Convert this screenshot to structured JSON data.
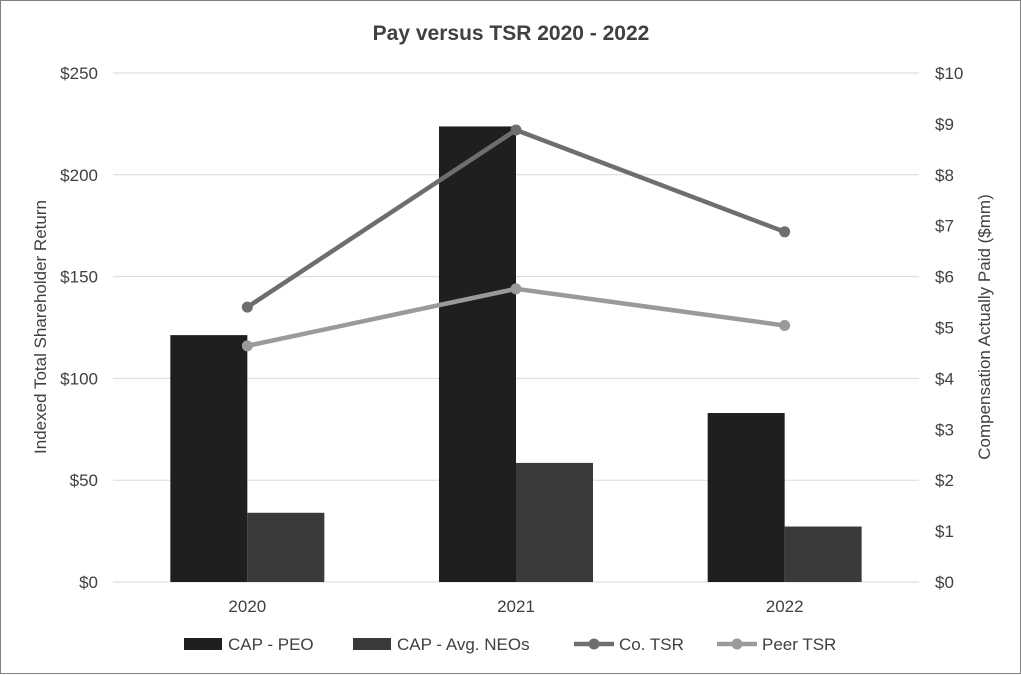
{
  "chart_data": {
    "type": "bar",
    "title": "Pay versus TSR 2020 - 2022",
    "categories": [
      "2020",
      "2021",
      "2022"
    ],
    "ylabel_left": "Indexed Total Shareholder Return",
    "ylabel_right": "Compensation Actually Paid ($mm)",
    "ylim_left": [
      0,
      250
    ],
    "ylim_right": [
      0,
      10
    ],
    "yticks_left": [
      "$0",
      "$50",
      "$100",
      "$150",
      "$200",
      "$250"
    ],
    "yticks_right": [
      "$0",
      "$1",
      "$2",
      "$3",
      "$4",
      "$5",
      "$6",
      "$7",
      "$8",
      "$9",
      "$10"
    ],
    "grid": true,
    "legend_position": "bottom",
    "series": [
      {
        "name": "CAP - PEO",
        "kind": "bar",
        "axis": "right",
        "color": "#1f1f1f",
        "values": [
          4.85,
          8.95,
          3.32
        ]
      },
      {
        "name": "CAP - Avg. NEOs",
        "kind": "bar",
        "axis": "right",
        "color": "#3a3a3a",
        "values": [
          1.36,
          2.34,
          1.09
        ]
      },
      {
        "name": "Co. TSR",
        "kind": "line",
        "axis": "left",
        "color": "#6e6e6e",
        "values": [
          135,
          222,
          172
        ]
      },
      {
        "name": "Peer TSR",
        "kind": "line",
        "axis": "left",
        "color": "#9a9a9a",
        "values": [
          116,
          144,
          126
        ]
      }
    ]
  }
}
